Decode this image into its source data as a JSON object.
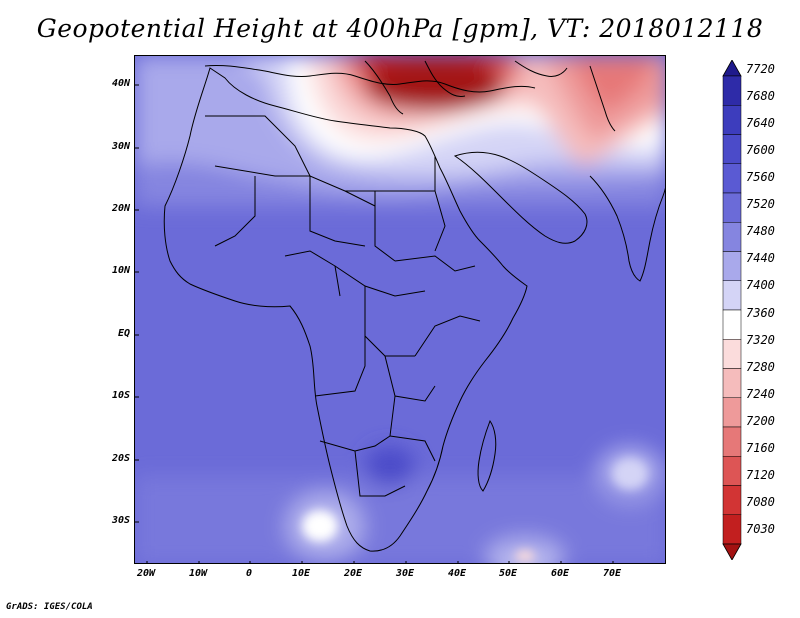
{
  "title": "Geopotential Height at 400hPa [gpm], VT: 2018012118",
  "credit": "GrADS: IGES/COLA",
  "chart_data": {
    "type": "heatmap",
    "title": "Geopotential Height at 400hPa [gpm], VT: 2018012118",
    "lon_range": [
      -22,
      80
    ],
    "lat_range": [
      -36,
      45
    ],
    "lat_ticks": [
      "40N",
      "30N",
      "20N",
      "10N",
      "EQ",
      "10S",
      "20S",
      "30S"
    ],
    "lat_values": [
      40,
      30,
      20,
      10,
      0,
      -10,
      -20,
      -30
    ],
    "lon_ticks": [
      "20W",
      "10W",
      "0",
      "10E",
      "20E",
      "30E",
      "40E",
      "50E",
      "60E",
      "70E"
    ],
    "lon_values": [
      -20,
      -10,
      0,
      10,
      20,
      30,
      40,
      50,
      60,
      70
    ],
    "colorbar_levels": [
      "7720",
      "7680",
      "7640",
      "7600",
      "7560",
      "7520",
      "7480",
      "7440",
      "7400",
      "7360",
      "7320",
      "7280",
      "7240",
      "7200",
      "7160",
      "7120",
      "7080",
      "7030"
    ],
    "colorbar_colors": [
      "#1f1a8c",
      "#2e2ba8",
      "#3d3dbd",
      "#4b4bc9",
      "#5a5ad3",
      "#6b6bd8",
      "#8585e0",
      "#a9a9eb",
      "#d4d4f6",
      "#ffffff",
      "#fbdcdc",
      "#f5bcbc",
      "#ee9a9a",
      "#e67878",
      "#dd5555",
      "#d23434",
      "#c21f1f",
      "#a31212"
    ],
    "colorbar_orientation": "vertical-right"
  }
}
